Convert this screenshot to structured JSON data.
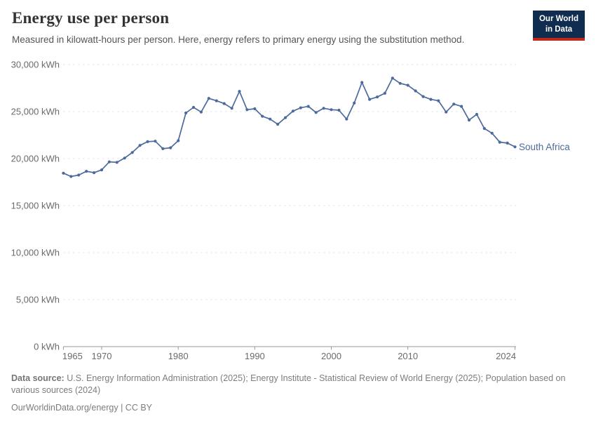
{
  "header": {
    "title": "Energy use per person",
    "subtitle": "Measured in kilowatt-hours per person. Here, energy refers to primary energy using the substitution method.",
    "logo": {
      "line1": "Our World",
      "line2": "in Data"
    }
  },
  "chart_data": {
    "type": "line",
    "title": "Energy use per person",
    "unit": "kWh",
    "xlabel": "",
    "ylabel": "kWh",
    "ylim": [
      0,
      30000
    ],
    "yticks": [
      0,
      5000,
      10000,
      15000,
      20000,
      25000,
      30000
    ],
    "ytick_labels": [
      "0 kWh",
      "5,000 kWh",
      "10,000 kWh",
      "15,000 kWh",
      "20,000 kWh",
      "25,000 kWh",
      "30,000 kWh"
    ],
    "xticks": [
      1965,
      1970,
      1980,
      1990,
      2000,
      2010,
      2024
    ],
    "grid": "dashed horizontal gridlines",
    "legend_position": "label at end of line",
    "x": [
      1965,
      1966,
      1967,
      1968,
      1969,
      1970,
      1971,
      1972,
      1973,
      1974,
      1975,
      1976,
      1977,
      1978,
      1979,
      1980,
      1981,
      1982,
      1983,
      1984,
      1985,
      1986,
      1987,
      1988,
      1989,
      1990,
      1991,
      1992,
      1993,
      1994,
      1995,
      1996,
      1997,
      1998,
      1999,
      2000,
      2001,
      2002,
      2003,
      2004,
      2005,
      2006,
      2007,
      2008,
      2009,
      2010,
      2011,
      2012,
      2013,
      2014,
      2015,
      2016,
      2017,
      2018,
      2019,
      2020,
      2021,
      2022,
      2023,
      2024
    ],
    "series": [
      {
        "name": "South Africa",
        "color": "#4C6A9C",
        "values": [
          18450,
          18100,
          18250,
          18650,
          18500,
          18800,
          19650,
          19600,
          20050,
          20650,
          21400,
          21800,
          21850,
          21050,
          21150,
          21900,
          24850,
          25450,
          24950,
          26400,
          26150,
          25850,
          25350,
          27150,
          25200,
          25300,
          24500,
          24200,
          23650,
          24350,
          25050,
          25400,
          25550,
          24900,
          25350,
          25200,
          25150,
          24200,
          25900,
          28100,
          26300,
          26550,
          26950,
          28550,
          28000,
          27800,
          27200,
          26600,
          26300,
          26150,
          24950,
          25800,
          25550,
          24100,
          24700,
          23200,
          22700,
          21750,
          21650,
          21250
        ]
      }
    ]
  },
  "footer": {
    "data_source_label": "Data source:",
    "data_source_text": " U.S. Energy Information Administration (2025); Energy Institute - Statistical Review of World Energy (2025); Population based on various sources (2024)",
    "license_line": "OurWorldinData.org/energy | CC BY"
  },
  "colors": {
    "line": "#4C6A9C",
    "gridline": "#dedede",
    "axis": "#999999",
    "axis_text": "#6b6b6b",
    "logo_bg": "#102d50",
    "logo_stripe": "#c0271d"
  }
}
